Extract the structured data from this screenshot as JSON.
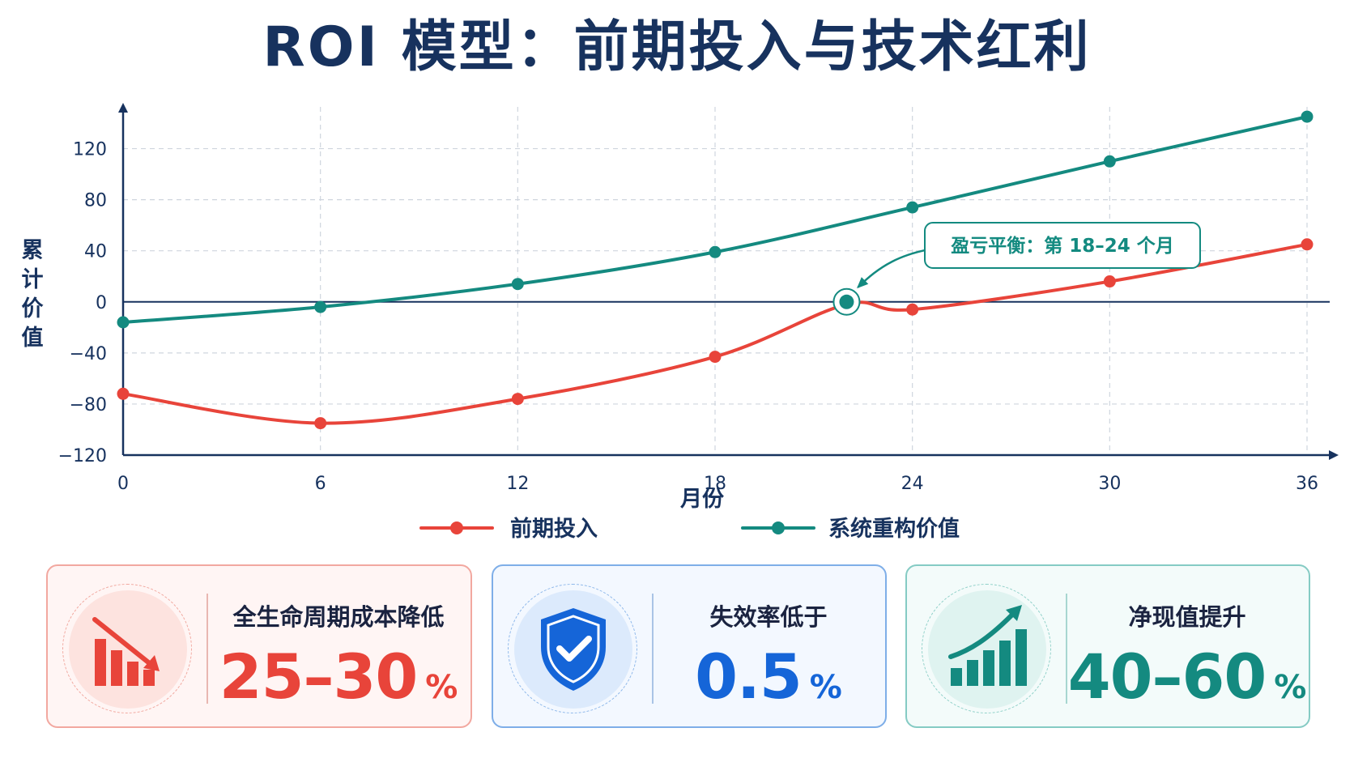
{
  "title": "ROI 模型：前期投入与技术红利",
  "chart_data": {
    "type": "line",
    "title": "ROI 模型：前期投入与技术红利",
    "xlabel": "月份",
    "ylabel": "累计价值",
    "xlim": [
      0,
      36
    ],
    "ylim": [
      -120,
      140
    ],
    "x_ticks": [
      "0",
      "6",
      "12",
      "18",
      "24",
      "30",
      "36"
    ],
    "y_ticks": [
      "120",
      "80",
      "40",
      "0",
      "−40",
      "−80",
      "−120"
    ],
    "grid": true,
    "legend_position": "bottom-center",
    "series": [
      {
        "name": "前期投入",
        "color": "#e8443a",
        "x": [
          0,
          6,
          12,
          18,
          22,
          24,
          30,
          36
        ],
        "y": [
          -72,
          -95,
          -76,
          -43,
          -2,
          -6,
          16,
          45
        ]
      },
      {
        "name": "系统重构价值",
        "color": "#148a80",
        "x": [
          0,
          6,
          12,
          18,
          24,
          30,
          36
        ],
        "y": [
          -16,
          -4,
          14,
          39,
          74,
          110,
          145
        ]
      }
    ],
    "annotations": [
      {
        "text": "盈亏平衡：第 18–24 个月",
        "x": 22,
        "y": 0
      }
    ]
  },
  "cards": [
    {
      "label": "全生命周期成本降低",
      "value": "25–30",
      "unit": "%",
      "icon": "cost-down-chart-icon",
      "color": "#e8443a"
    },
    {
      "label": "失效率低于",
      "value": "0.5",
      "unit": "%",
      "icon": "shield-check-icon",
      "color": "#1565d8"
    },
    {
      "label": "净现值提升",
      "value": "40–60",
      "unit": "%",
      "icon": "growth-chart-icon",
      "color": "#148a80"
    }
  ]
}
